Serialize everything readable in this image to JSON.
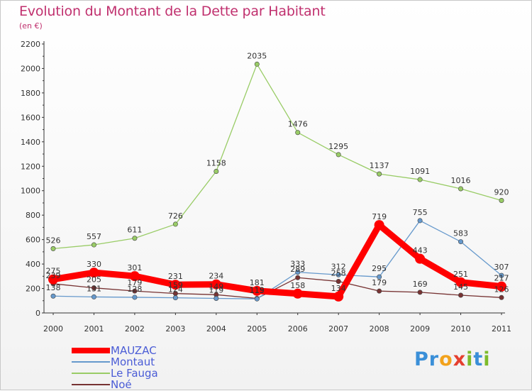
{
  "title": "Evolution du Montant de la Dette par Habitant",
  "subtitle": "(en €)",
  "logo": {
    "text": "Proxiti",
    "letters": [
      {
        "ch": "P",
        "color": "#3a8fd8"
      },
      {
        "ch": "r",
        "color": "#3a8fd8"
      },
      {
        "ch": "o",
        "color": "#f2a21c"
      },
      {
        "ch": "x",
        "color": "#e53f2f"
      },
      {
        "ch": "i",
        "color": "#7dbb2a"
      },
      {
        "ch": "t",
        "color": "#3a8fd8"
      },
      {
        "ch": "i",
        "color": "#7dbb2a"
      }
    ]
  },
  "chart_data": {
    "type": "line",
    "categories": [
      "2000",
      "2001",
      "2002",
      "2003",
      "2004",
      "2005",
      "2006",
      "2007",
      "2008",
      "2009",
      "2010",
      "2011"
    ],
    "yticks": [
      0,
      200,
      400,
      600,
      800,
      1000,
      1200,
      1400,
      1600,
      1800,
      2000,
      2200
    ],
    "ylim": [
      0,
      2200
    ],
    "grid": false,
    "legend": "bottom-left",
    "series": [
      {
        "name": "MAUZAC",
        "color": "#ff0000",
        "values": [
          275,
          330,
          301,
          231,
          234,
          181,
          158,
          134,
          719,
          443,
          251,
          217
        ],
        "labels": [
          "275",
          "330",
          "301",
          "231",
          "234",
          "181",
          "158",
          "134",
          "719",
          "443",
          "251",
          "217"
        ]
      },
      {
        "name": "Montaut",
        "color": "#6699cc",
        "values": [
          138,
          131,
          128,
          124,
          119,
          115,
          333,
          312,
          295,
          755,
          583,
          307
        ],
        "labels": [
          "138",
          "131",
          "128",
          "124",
          "119",
          "115",
          "333",
          "312",
          "295",
          "755",
          "583",
          "307"
        ]
      },
      {
        "name": "Le Fauga",
        "color": "#99cc66",
        "values": [
          526,
          557,
          611,
          726,
          1158,
          2035,
          1476,
          1295,
          1137,
          1091,
          1016,
          920
        ],
        "labels": [
          "526",
          "557",
          "611",
          "726",
          "1158",
          "2035",
          "1476",
          "1295",
          "1137",
          "1091",
          "1016",
          "920"
        ]
      },
      {
        "name": "Noé",
        "color": "#773333",
        "values": [
          239,
          205,
          179,
          159,
          149,
          119,
          289,
          258,
          179,
          169,
          145,
          126
        ],
        "labels": [
          "239",
          "205",
          "179",
          "159",
          "149",
          "119",
          "289",
          "258",
          "179",
          "169",
          "145",
          "126"
        ]
      }
    ]
  }
}
